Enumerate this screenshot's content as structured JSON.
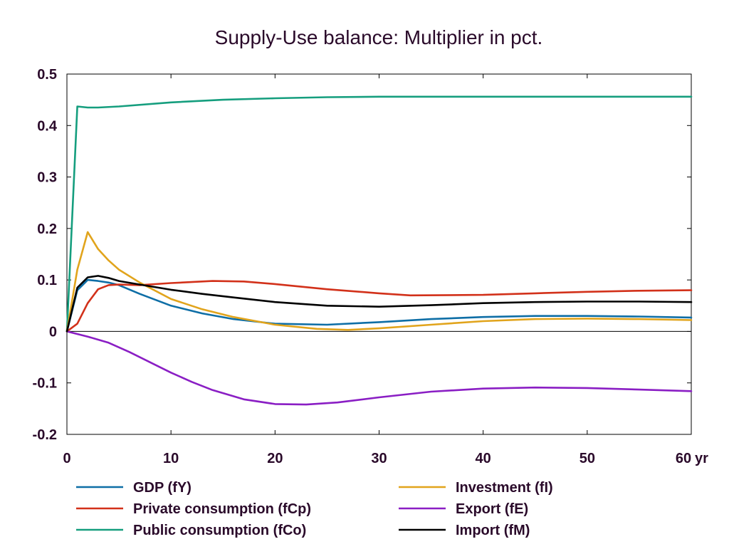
{
  "chart_data": {
    "type": "line",
    "title": "Supply-Use balance: Multiplier in pct.",
    "x_unit_label": "yr",
    "xlim": [
      0,
      60
    ],
    "ylim": [
      -0.2,
      0.5
    ],
    "x_ticks": [
      0,
      10,
      20,
      30,
      40,
      50,
      60
    ],
    "y_ticks": [
      -0.2,
      -0.1,
      0,
      0.1,
      0.2,
      0.3,
      0.4,
      0.5
    ],
    "zero_line": true,
    "legend_position": "bottom",
    "series": [
      {
        "name": "GDP (fY)",
        "color": "#0e6ea6",
        "x": [
          0,
          1,
          2,
          3,
          4,
          5,
          7,
          10,
          13,
          16,
          20,
          25,
          30,
          35,
          40,
          45,
          50,
          55,
          60
        ],
        "y": [
          0,
          0.08,
          0.1,
          0.098,
          0.095,
          0.09,
          0.073,
          0.05,
          0.035,
          0.024,
          0.015,
          0.013,
          0.018,
          0.024,
          0.028,
          0.03,
          0.03,
          0.029,
          0.027
        ]
      },
      {
        "name": "Private consumption (fCp)",
        "color": "#d2311a",
        "x": [
          0,
          1,
          2,
          3,
          4,
          5,
          7,
          10,
          14,
          17,
          20,
          25,
          30,
          33,
          40,
          45,
          50,
          55,
          60
        ],
        "y": [
          0,
          0.015,
          0.055,
          0.082,
          0.09,
          0.091,
          0.09,
          0.094,
          0.098,
          0.097,
          0.092,
          0.082,
          0.074,
          0.07,
          0.071,
          0.074,
          0.077,
          0.079,
          0.08
        ]
      },
      {
        "name": "Public consumption (fCo)",
        "color": "#159e7e",
        "x": [
          0,
          1,
          2,
          3,
          5,
          10,
          15,
          20,
          25,
          30,
          40,
          50,
          60
        ],
        "y": [
          0,
          0.437,
          0.435,
          0.435,
          0.437,
          0.445,
          0.45,
          0.453,
          0.455,
          0.456,
          0.456,
          0.456,
          0.456
        ]
      },
      {
        "name": "Investment (fI)",
        "color": "#e1a41c",
        "x": [
          0,
          1,
          2,
          3,
          4,
          5,
          7,
          10,
          13,
          16,
          20,
          24,
          27,
          30,
          35,
          40,
          45,
          50,
          55,
          60
        ],
        "y": [
          0,
          0.12,
          0.193,
          0.16,
          0.138,
          0.12,
          0.095,
          0.063,
          0.043,
          0.028,
          0.013,
          0.005,
          0.003,
          0.006,
          0.013,
          0.02,
          0.024,
          0.025,
          0.024,
          0.022
        ]
      },
      {
        "name": "Export (fE)",
        "color": "#8a1ec4",
        "x": [
          0,
          2,
          4,
          6,
          8,
          10,
          12,
          14,
          17,
          20,
          23,
          26,
          30,
          35,
          40,
          45,
          50,
          55,
          60
        ],
        "y": [
          0,
          -0.01,
          -0.022,
          -0.04,
          -0.06,
          -0.08,
          -0.098,
          -0.114,
          -0.132,
          -0.141,
          -0.142,
          -0.138,
          -0.128,
          -0.117,
          -0.111,
          -0.109,
          -0.11,
          -0.113,
          -0.116
        ]
      },
      {
        "name": "Import (fM)",
        "color": "#000000",
        "x": [
          0,
          1,
          2,
          3,
          4,
          5,
          7,
          10,
          13,
          16,
          20,
          25,
          30,
          35,
          40,
          45,
          50,
          55,
          60
        ],
        "y": [
          0,
          0.085,
          0.105,
          0.108,
          0.104,
          0.098,
          0.091,
          0.081,
          0.073,
          0.066,
          0.057,
          0.05,
          0.048,
          0.051,
          0.055,
          0.057,
          0.058,
          0.058,
          0.057
        ]
      }
    ]
  }
}
